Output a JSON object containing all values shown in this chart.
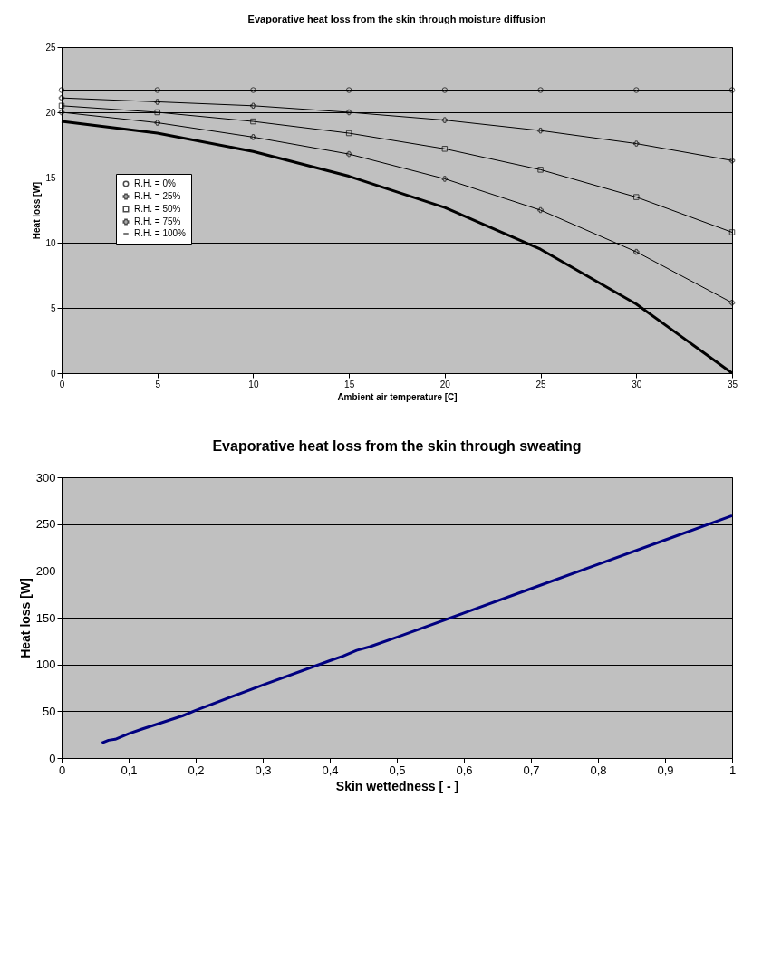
{
  "chart_data": [
    {
      "type": "line",
      "title": "Evaporative heat loss from the skin through moisture diffusion",
      "xlabel": "Ambient air temperature [C]",
      "ylabel": "Heat loss [W]",
      "x": [
        0,
        5,
        10,
        15,
        20,
        25,
        30,
        35
      ],
      "series": [
        {
          "name": "R.H. = 0%",
          "color": "#000000",
          "marker": "circle",
          "values": [
            21.7,
            21.7,
            21.7,
            21.7,
            21.7,
            21.7,
            21.7,
            21.7
          ]
        },
        {
          "name": "R.H. = 25%",
          "color": "#000000",
          "marker": "cross",
          "values": [
            21.1,
            20.8,
            20.5,
            20.0,
            19.4,
            18.6,
            17.6,
            16.3
          ]
        },
        {
          "name": "R.H. = 50%",
          "color": "#000000",
          "marker": "square",
          "values": [
            20.5,
            20.0,
            19.3,
            18.4,
            17.2,
            15.6,
            13.5,
            10.8
          ]
        },
        {
          "name": "R.H. = 75%",
          "color": "#000000",
          "marker": "cross",
          "values": [
            20.0,
            19.2,
            18.1,
            16.8,
            14.9,
            12.5,
            9.3,
            5.4
          ]
        },
        {
          "name": "R.H. = 100%",
          "color": "#000000",
          "marker": "none",
          "values": [
            19.3,
            18.4,
            17.0,
            15.1,
            12.7,
            9.5,
            5.3,
            0.0
          ]
        }
      ],
      "xlim": [
        0,
        35
      ],
      "xticks": [
        0,
        5,
        10,
        15,
        20,
        25,
        30,
        35
      ],
      "ylim": [
        0,
        25
      ],
      "yticks": [
        0,
        5,
        10,
        15,
        20,
        25
      ],
      "grid": "y",
      "legend": "left"
    },
    {
      "type": "line",
      "title": "Evaporative heat loss from the skin through sweating",
      "xlabel": "Skin wettedness [ - ]",
      "ylabel": "Heat loss [W]",
      "x": [
        0.06,
        0.07,
        0.08,
        0.1,
        0.12,
        0.15,
        0.18,
        0.2,
        0.3,
        0.4,
        0.42,
        0.44,
        0.46,
        0.5,
        0.6,
        0.7,
        0.8,
        0.9,
        1
      ],
      "series": [
        {
          "color": "#000080",
          "values": [
            16,
            19,
            20,
            26,
            31,
            38,
            45,
            51,
            78,
            104,
            109,
            115,
            119,
            129,
            155,
            181,
            207,
            233,
            259
          ]
        }
      ],
      "xlim": [
        0,
        1
      ],
      "xticks": [
        0,
        {
          "value": 0.1,
          "label": "0,1"
        },
        {
          "value": 0.2,
          "label": "0,2"
        },
        {
          "value": 0.3,
          "label": "0,3"
        },
        {
          "value": 0.4,
          "label": "0,4"
        },
        {
          "value": 0.5,
          "label": "0,5"
        },
        {
          "value": 0.6,
          "label": "0,6"
        },
        {
          "value": 0.7,
          "label": "0,7"
        },
        {
          "value": 0.8,
          "label": "0,8"
        },
        {
          "value": 0.9,
          "label": "0,9"
        },
        1
      ],
      "ylim": [
        0,
        300
      ],
      "yticks": [
        0,
        50,
        100,
        150,
        200,
        250,
        300
      ],
      "grid": "y"
    }
  ]
}
